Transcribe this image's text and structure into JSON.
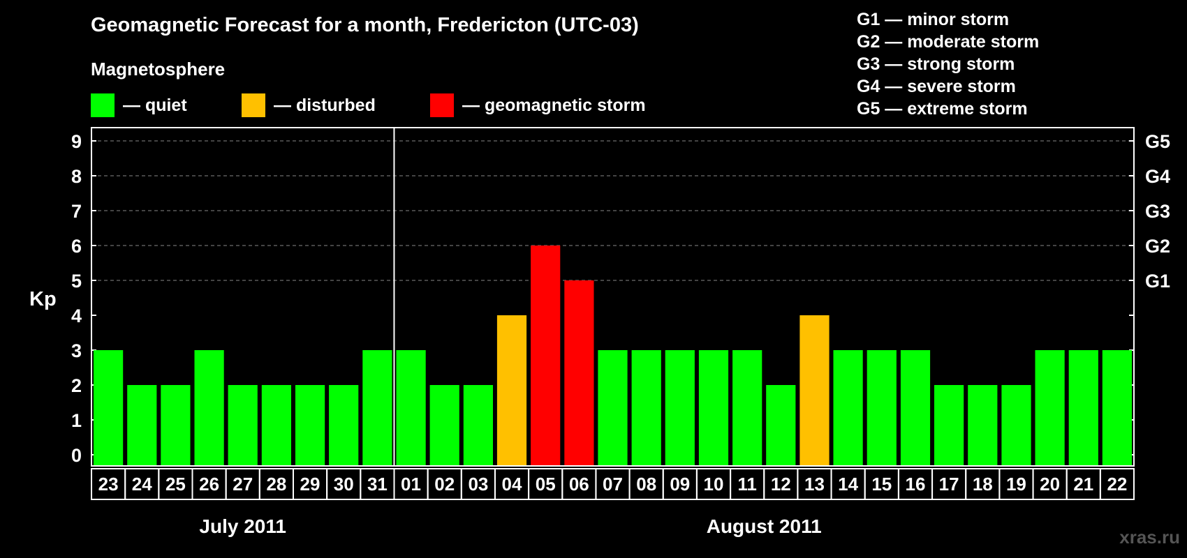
{
  "title": "Geomagnetic Forecast for a month, Fredericton (UTC-03)",
  "legend": {
    "heading": "Magnetosphere",
    "items": [
      {
        "label": "— quiet",
        "color": "#00ff00"
      },
      {
        "label": "— disturbed",
        "color": "#ffc000"
      },
      {
        "label": "— geomagnetic storm",
        "color": "#ff0000"
      }
    ]
  },
  "g_legend": [
    "G1 — minor storm",
    "G2 — moderate storm",
    "G3 — strong storm",
    "G4 — severe storm",
    "G5 — extreme storm"
  ],
  "watermark": "xras.ru",
  "chart_data": {
    "type": "bar",
    "ylabel": "Kp",
    "ylim": [
      0,
      9
    ],
    "yticks": [
      "0",
      "1",
      "2",
      "3",
      "4",
      "5",
      "6",
      "7",
      "8",
      "9"
    ],
    "right_ticks": [
      {
        "value": 5,
        "label": "G1"
      },
      {
        "value": 6,
        "label": "G2"
      },
      {
        "value": 7,
        "label": "G3"
      },
      {
        "value": 8,
        "label": "G4"
      },
      {
        "value": 9,
        "label": "G5"
      }
    ],
    "categories": [
      "23",
      "24",
      "25",
      "26",
      "27",
      "28",
      "29",
      "30",
      "31",
      "01",
      "02",
      "03",
      "04",
      "05",
      "06",
      "07",
      "08",
      "09",
      "10",
      "11",
      "12",
      "13",
      "14",
      "15",
      "16",
      "17",
      "18",
      "19",
      "20",
      "21",
      "22"
    ],
    "values": [
      3,
      2,
      2,
      3,
      2,
      2,
      2,
      2,
      3,
      3,
      2,
      2,
      4,
      6,
      5,
      3,
      3,
      3,
      3,
      3,
      2,
      4,
      3,
      3,
      3,
      2,
      2,
      2,
      3,
      3,
      3
    ],
    "status": [
      "quiet",
      "quiet",
      "quiet",
      "quiet",
      "quiet",
      "quiet",
      "quiet",
      "quiet",
      "quiet",
      "quiet",
      "quiet",
      "quiet",
      "disturbed",
      "storm",
      "storm",
      "quiet",
      "quiet",
      "quiet",
      "quiet",
      "quiet",
      "quiet",
      "disturbed",
      "quiet",
      "quiet",
      "quiet",
      "quiet",
      "quiet",
      "quiet",
      "quiet",
      "quiet",
      "quiet"
    ],
    "colors": {
      "quiet": "#00ff00",
      "disturbed": "#ffc000",
      "storm": "#ff0000"
    },
    "months": [
      {
        "label": "July 2011",
        "start_index": 0,
        "end_index": 8
      },
      {
        "label": "August 2011",
        "start_index": 9,
        "end_index": 30
      }
    ],
    "grid": "dashed-horizontal"
  }
}
